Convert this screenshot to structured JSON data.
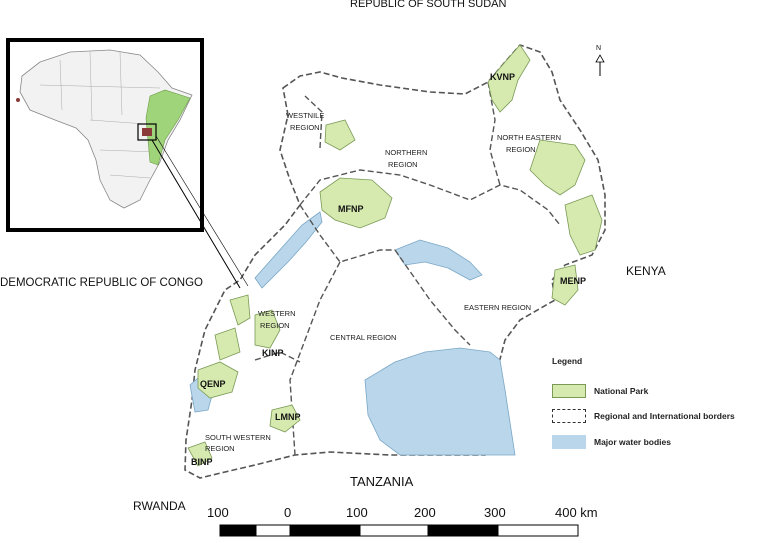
{
  "countries": {
    "north": "REPUBLIC OF SOUTH SUDAN",
    "west": "DEMOCRATIC REPUBLIC OF CONGO",
    "east": "KENYA",
    "south": "TANZANIA",
    "southwest": "RWANDA"
  },
  "regions": {
    "westnile_1": "WESTNILE",
    "westnile_2": "REGION",
    "northern_1": "NORTHERN",
    "northern_2": "REGION",
    "northeastern_1": "NORTH EASTERN",
    "northeastern_2": "REGION",
    "western_1": "WESTERN",
    "western_2": "REGION",
    "central": "CENTRAL REGION",
    "eastern": "EASTERN REGION",
    "southwestern_1": "SOUTH WESTERN",
    "southwestern_2": "REGION"
  },
  "parks": {
    "kvnp": "KVNP",
    "mfnp": "MFNP",
    "menp": "MENP",
    "kinp": "KINP",
    "qenp": "QENP",
    "lmnp": "LMNP",
    "binp": "BINP"
  },
  "north_arrow": "N",
  "legend": {
    "title": "Legend",
    "national_park": "National Park",
    "borders": "Regional and International borders",
    "water": "Major water bodies"
  },
  "scale_bar": {
    "labels": [
      "100",
      "0",
      "100",
      "200",
      "300",
      "400 km"
    ]
  },
  "colors": {
    "park_fill": "#d6eab0",
    "water_fill": "#b9d6ea",
    "border": "#555555",
    "africa_highlight": "#a0d47a",
    "uganda_marker": "#8b3a3a"
  }
}
